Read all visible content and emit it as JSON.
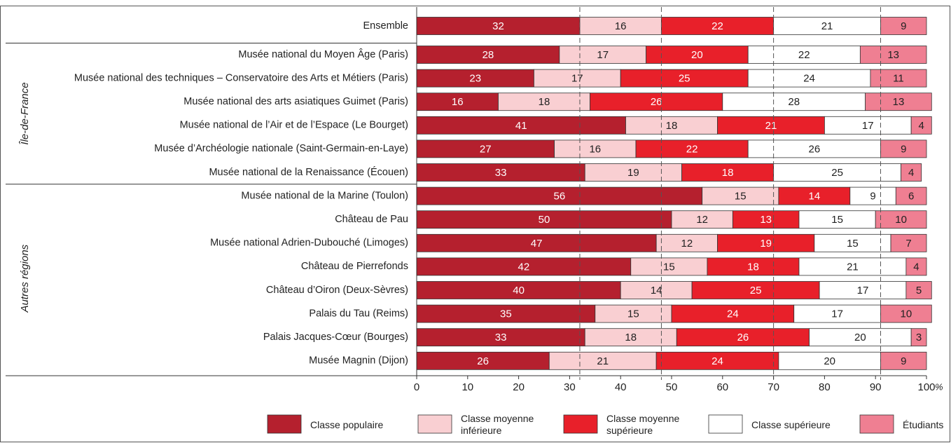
{
  "chart_data": {
    "type": "stacked_barh",
    "categories": [
      "Ensemble",
      "Musée national du Moyen Âge (Paris)",
      "Musée national des techniques – Conservatoire des Arts et Métiers (Paris)",
      "Musée national des arts asiatiques Guimet (Paris)",
      "Musée national de l’Air et de l’Espace (Le Bourget)",
      "Musée d’Archéologie nationale (Saint-Germain-en-Laye)",
      "Musée national de la Renaissance (Écouen)",
      "Musée national de la Marine (Toulon)",
      "Château de Pau",
      "Musée national Adrien-Dubouché (Limoges)",
      "Château de Pierrefonds",
      "Château d’Oiron (Deux-Sèvres)",
      "Palais du Tau (Reims)",
      "Palais Jacques-Cœur (Bourges)",
      "Musée Magnin (Dijon)"
    ],
    "category_groups": [
      null,
      "Île-de-France",
      "Île-de-France",
      "Île-de-France",
      "Île-de-France",
      "Île-de-France",
      "Île-de-France",
      "Autres régions",
      "Autres régions",
      "Autres régions",
      "Autres régions",
      "Autres régions",
      "Autres régions",
      "Autres régions",
      "Autres régions"
    ],
    "series": [
      {
        "name": "Classe populaire",
        "color": "#b5202e",
        "label_color": "#ffffff",
        "values": [
          32,
          28,
          23,
          16,
          41,
          27,
          33,
          56,
          50,
          47,
          42,
          40,
          35,
          33,
          26
        ]
      },
      {
        "name": "Classe moyenne inférieure",
        "color": "#f9cfd2",
        "label_color": "#222222",
        "values": [
          16,
          17,
          17,
          18,
          18,
          16,
          19,
          15,
          12,
          12,
          15,
          14,
          15,
          18,
          21
        ]
      },
      {
        "name": "Classe moyenne supérieure",
        "color": "#e8202a",
        "label_color": "#ffffff",
        "values": [
          22,
          20,
          25,
          26,
          21,
          22,
          18,
          14,
          13,
          19,
          18,
          25,
          24,
          26,
          24
        ]
      },
      {
        "name": "Classe supérieure",
        "color": "#ffffff",
        "label_color": "#222222",
        "values": [
          21,
          22,
          24,
          28,
          17,
          26,
          25,
          9,
          15,
          15,
          21,
          17,
          17,
          20,
          20
        ]
      },
      {
        "name": "Étudiants",
        "color": "#ef7f92",
        "label_color": "#222222",
        "values": [
          9,
          13,
          11,
          13,
          4,
          9,
          4,
          6,
          10,
          7,
          4,
          5,
          10,
          3,
          9
        ]
      }
    ],
    "xlim": [
      0,
      100
    ],
    "xticks": [
      0,
      10,
      20,
      30,
      40,
      50,
      60,
      70,
      80,
      90,
      100
    ],
    "x_unit": "%",
    "reference_lines_from": "Ensemble"
  }
}
